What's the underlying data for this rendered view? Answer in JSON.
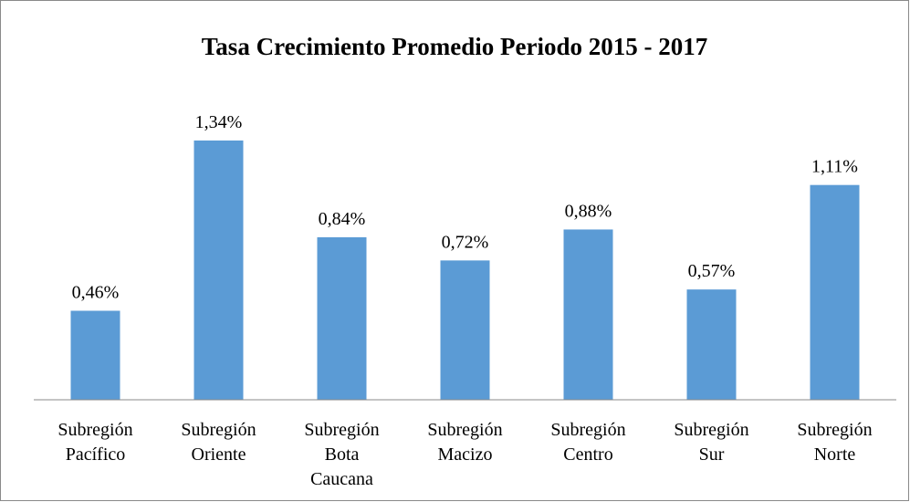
{
  "chart_data": {
    "type": "bar",
    "title": "Tasa Crecimiento Promedio Periodo 2015 - 2017",
    "categories": [
      "Subregión\nPacífico",
      "Subregión\nOriente",
      "Subregión\nBota\nCaucana",
      "Subregión\nMacizo",
      "Subregión\nCentro",
      "Subregión\nSur",
      "Subregión\nNorte"
    ],
    "values": [
      0.46,
      1.34,
      0.84,
      0.72,
      0.88,
      0.57,
      1.11
    ],
    "value_labels": [
      "0,46%",
      "1,34%",
      "0,84%",
      "0,72%",
      "0,88%",
      "0,57%",
      "1,11%"
    ],
    "color": "#5b9bd5",
    "ylim": [
      0,
      1.5
    ],
    "grid": false
  }
}
